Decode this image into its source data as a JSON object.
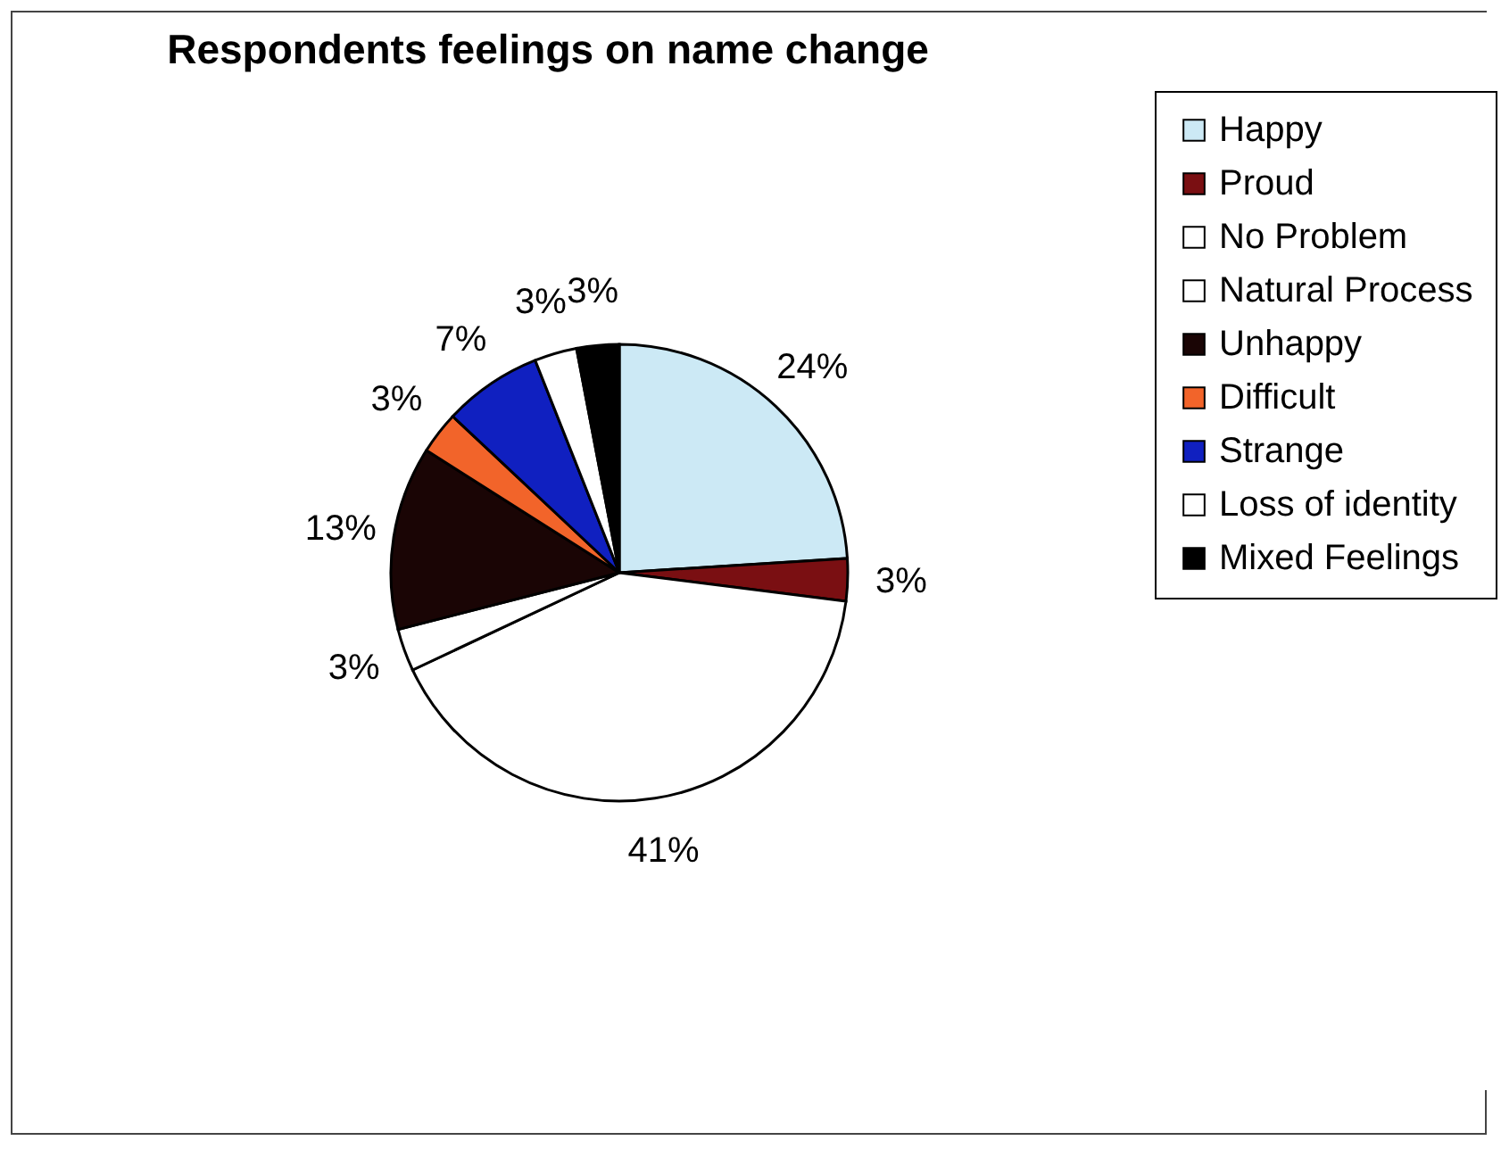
{
  "chart_data": {
    "type": "pie",
    "title": "Respondents feelings on name change",
    "categories": [
      "Happy",
      "Proud",
      "No Problem",
      "Natural Process",
      "Unhappy",
      "Difficult",
      "Strange",
      "Loss of identity",
      "Mixed Feelings"
    ],
    "values": [
      24,
      3,
      41,
      3,
      13,
      3,
      7,
      3,
      3
    ],
    "colors": [
      "#cce9f5",
      "#7a0f12",
      "#ffffff",
      "#ffffff",
      "#1a0505",
      "#f2642a",
      "#1020c0",
      "#ffffff",
      "#000000"
    ],
    "value_labels": [
      "24%",
      "3%",
      "41%",
      "3%",
      "13%",
      "3%",
      "7%",
      "3%",
      "3%"
    ],
    "legend": "right"
  }
}
